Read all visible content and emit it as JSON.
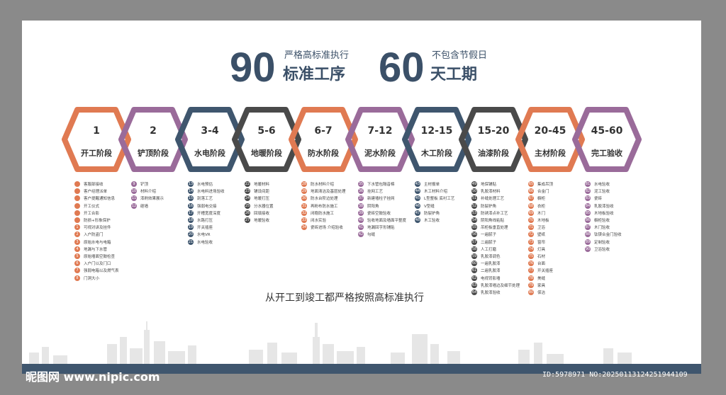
{
  "header": {
    "days1": "90",
    "sub1": "严格高标准执行",
    "main1": "标准工序",
    "days2": "60",
    "sub2": "不包含节假日",
    "main2": "天工期"
  },
  "stages": [
    {
      "num": "1",
      "name": "开工阶段",
      "color": "#e07a52"
    },
    {
      "num": "2",
      "name": "铲顶阶段",
      "color": "#9a6b9a"
    },
    {
      "num": "3-4",
      "name": "水电阶段",
      "color": "#3f566e"
    },
    {
      "num": "5-6",
      "name": "地暖阶段",
      "color": "#4a4a4a"
    },
    {
      "num": "6-7",
      "name": "防水阶段",
      "color": "#e07a52"
    },
    {
      "num": "7-12",
      "name": "泥水阶段",
      "color": "#9a6b9a"
    },
    {
      "num": "12-15",
      "name": "木工阶段",
      "color": "#3f566e"
    },
    {
      "num": "15-20",
      "name": "油漆阶段",
      "color": "#4a4a4a"
    },
    {
      "num": "20-45",
      "name": "主材阶段",
      "color": "#e07a52"
    },
    {
      "num": "45-60",
      "name": "完工验收",
      "color": "#9a6b9a"
    }
  ],
  "lists": [
    {
      "color": "#e07a52",
      "items": [
        [
          "",
          "客服部接收"
        ],
        [
          "",
          "客户经理派单"
        ],
        [
          "",
          "客户提醒通知信息"
        ],
        [
          "",
          "开工仪式"
        ],
        [
          "",
          "开工合影"
        ],
        [
          "",
          "防损+形象保护"
        ],
        [
          "1",
          "可视对讲及挂件"
        ],
        [
          "2",
          "入户防盗门"
        ],
        [
          "3",
          "原始水电与电箱"
        ],
        [
          "4",
          "地漏与下水管"
        ],
        [
          "5",
          "原始墙面空鼓检查"
        ],
        [
          "6",
          "入户门以及门口"
        ],
        [
          "7",
          "强弱电箱以及燃气表"
        ],
        [
          "8",
          "门洞大小"
        ]
      ]
    },
    {
      "color": "#9a6b9a",
      "items": [
        [
          "9",
          "铲顶"
        ],
        [
          "10",
          "材料介绍"
        ],
        [
          "11",
          "漆刷效果展示"
        ],
        [
          "12",
          "砸墙"
        ]
      ]
    },
    {
      "color": "#3f566e",
      "items": [
        [
          "13",
          "水电预估"
        ],
        [
          "14",
          "水电料进场验收"
        ],
        [
          "15",
          "刮落工艺"
        ],
        [
          "16",
          "强弱电交接"
        ],
        [
          "17",
          "开槽宽度深度"
        ],
        [
          "18",
          "水路打压"
        ],
        [
          "19",
          "开关插座"
        ],
        [
          "20",
          "水电VR"
        ],
        [
          "21",
          "水电验收"
        ]
      ]
    },
    {
      "color": "#4a4a4a",
      "items": [
        [
          "22",
          "地暖材料"
        ],
        [
          "23",
          "铺设间距"
        ],
        [
          "24",
          "地暖打压"
        ],
        [
          "25",
          "分水器位置"
        ],
        [
          "26",
          "回填接收"
        ],
        [
          "27",
          "地暖验收"
        ]
      ]
    },
    {
      "color": "#e07a52",
      "items": [
        [
          "28",
          "防水材料介绍"
        ],
        [
          "29",
          "地面清洁及基层处理"
        ],
        [
          "30",
          "防水台阶边处理"
        ],
        [
          "31",
          "再粉布防水施工"
        ],
        [
          "32",
          "闭稳防水施工"
        ],
        [
          "33",
          "闭水实验"
        ],
        [
          "34",
          "瓷砖进场 介绍验收"
        ]
      ]
    },
    {
      "color": "#9a6b9a",
      "items": [
        [
          "35",
          "下水管包隔音棉"
        ],
        [
          "36",
          "挂网工艺"
        ],
        [
          "37",
          "新建墙柱子挂网"
        ],
        [
          "38",
          "阴阳角"
        ],
        [
          "39",
          "瓷砖空鼓验收"
        ],
        [
          "40",
          "验收地面及墙面平整度"
        ],
        [
          "41",
          "地漏回字形铺贴"
        ],
        [
          "42",
          "勾缝"
        ]
      ]
    },
    {
      "color": "#3f566e",
      "items": [
        [
          "43",
          "主材报单"
        ],
        [
          "44",
          "木工材料介绍"
        ],
        [
          "45",
          "L型整板 底衬工艺"
        ],
        [
          "46",
          "V型缝"
        ],
        [
          "47",
          "防裂护角"
        ],
        [
          "48",
          "木工验收"
        ]
      ]
    },
    {
      "color": "#4a4a4a",
      "items": [
        [
          "49",
          "地保铺贴"
        ],
        [
          "50",
          "乳胶漆材料"
        ],
        [
          "51",
          "补缝处理工艺"
        ],
        [
          "52",
          "防裂护角"
        ],
        [
          "53",
          "防锈漆点补工艺"
        ],
        [
          "54",
          "阴阳角线粘贴"
        ],
        [
          "55",
          "吊柜板垂直处理"
        ],
        [
          "56",
          "一遍腻子"
        ],
        [
          "57",
          "二遍腻子"
        ],
        [
          "58",
          "人工打磨"
        ],
        [
          "59",
          "乳胶漆调色"
        ],
        [
          "60",
          "一遍乳胶漆"
        ],
        [
          "61",
          "二遍乳胶漆"
        ],
        [
          "62",
          "电视背影墙"
        ],
        [
          "63",
          "乳胶漆墙边及细节处理"
        ],
        [
          "64",
          "乳胶漆验收"
        ]
      ]
    },
    {
      "color": "#e07a52",
      "items": [
        [
          "65",
          "集成吊顶"
        ],
        [
          "66",
          "合金门"
        ],
        [
          "67",
          "橱柜"
        ],
        [
          "68",
          "衣柜"
        ],
        [
          "69",
          "木门"
        ],
        [
          "70",
          "木地板"
        ],
        [
          "71",
          "卫浴"
        ],
        [
          "72",
          "壁纸"
        ],
        [
          "73",
          "窗帘"
        ],
        [
          "74",
          "灯具"
        ],
        [
          "75",
          "石材"
        ],
        [
          "76",
          "台面"
        ],
        [
          "77",
          "开关插座"
        ],
        [
          "78",
          "美缝"
        ],
        [
          "79",
          "家具"
        ],
        [
          "80",
          "保洁"
        ]
      ]
    },
    {
      "color": "#9a6b9a",
      "items": [
        [
          "81",
          "水电验收"
        ],
        [
          "82",
          "泥工验收"
        ],
        [
          "83",
          "瓷砖"
        ],
        [
          "84",
          "乳胶漆验收"
        ],
        [
          "85",
          "木地板验收"
        ],
        [
          "86",
          "橱柜验收"
        ],
        [
          "87",
          "木门验收"
        ],
        [
          "88",
          "钛镁合金门验收"
        ],
        [
          "89",
          "定制验收"
        ],
        [
          "90",
          "卫浴验收"
        ]
      ]
    }
  ],
  "tagline": "从开工到竣工都严格按照高标准执行",
  "watermark": {
    "logo": "昵图网 www.nipic.com",
    "id": "ID:5978971 NO:20250113124251944109"
  }
}
